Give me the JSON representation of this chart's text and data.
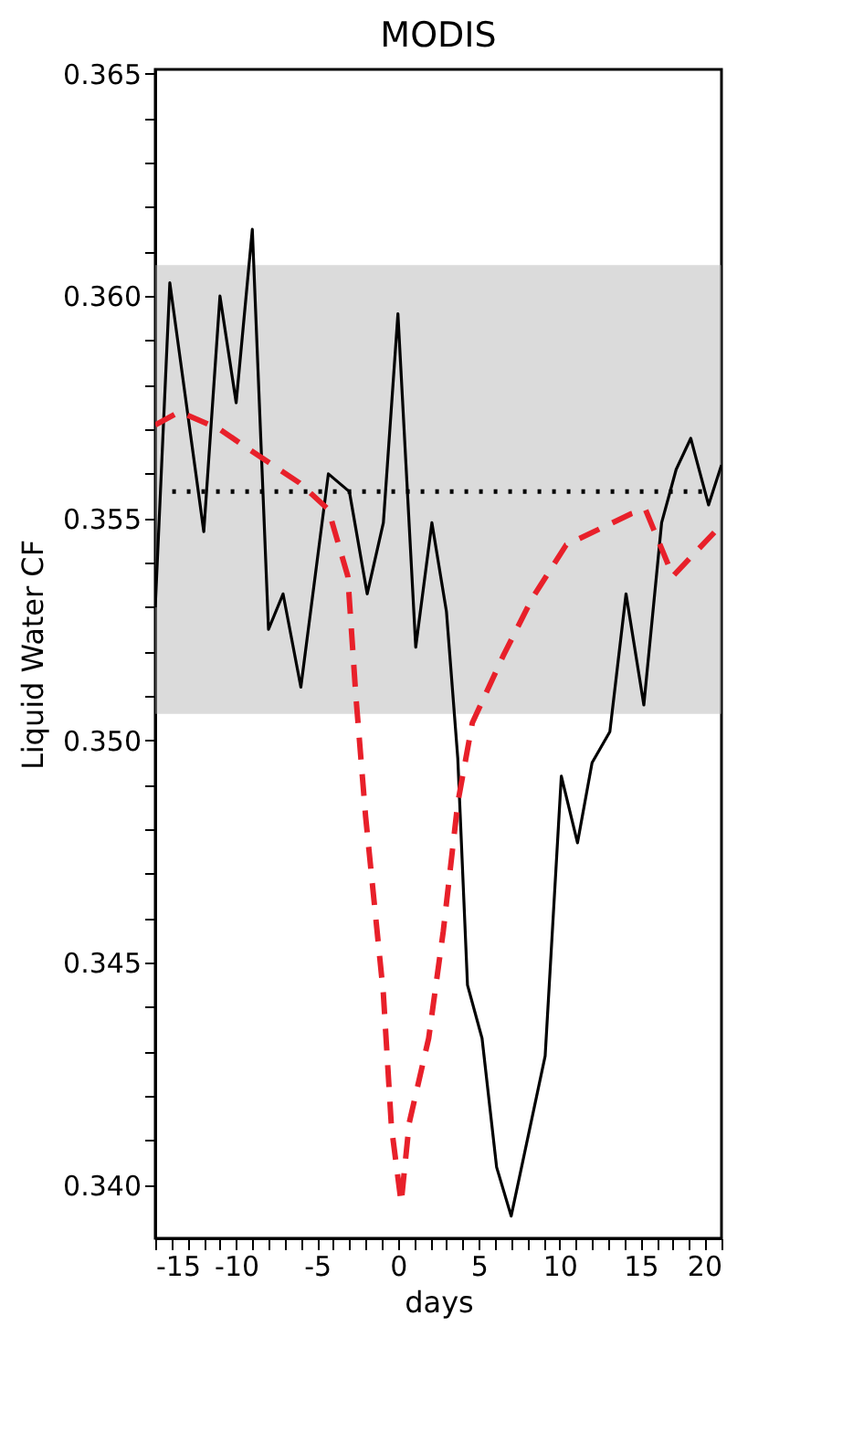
{
  "chart_data": {
    "type": "line",
    "title": "MODIS",
    "xlabel": "days",
    "ylabel": "Liquid Water CF",
    "xlim": [
      -15,
      20
    ],
    "ylim": [
      0.3388,
      0.3651
    ],
    "xticks": [
      -15,
      {
        "value": -14,
        "label": null
      },
      {
        "value": -13,
        "label": null
      },
      {
        "value": -12,
        "label": null
      },
      {
        "value": -11,
        "label": null
      },
      -10,
      {
        "value": -9,
        "label": null
      },
      {
        "value": -8,
        "label": null
      },
      {
        "value": -7,
        "label": null
      },
      {
        "value": -6,
        "label": null
      },
      -5,
      {
        "value": -4,
        "label": null
      },
      {
        "value": -3,
        "label": null
      },
      {
        "value": -2,
        "label": null
      },
      {
        "value": -1,
        "label": null
      },
      0,
      {
        "value": 1,
        "label": null
      },
      {
        "value": 2,
        "label": null
      },
      {
        "value": 3,
        "label": null
      },
      {
        "value": 4,
        "label": null
      },
      5,
      {
        "value": 6,
        "label": null
      },
      {
        "value": 7,
        "label": null
      },
      {
        "value": 8,
        "label": null
      },
      {
        "value": 9,
        "label": null
      },
      10,
      {
        "value": 11,
        "label": null
      },
      {
        "value": 12,
        "label": null
      },
      {
        "value": 13,
        "label": null
      },
      {
        "value": 14,
        "label": null
      },
      15,
      {
        "value": 16,
        "label": null
      },
      {
        "value": 17,
        "label": null
      },
      {
        "value": 18,
        "label": null
      },
      {
        "value": 19,
        "label": null
      },
      20
    ],
    "yticks": [
      {
        "value": 0.34,
        "label": "0.340"
      },
      {
        "value": 0.341,
        "label": null
      },
      {
        "value": 0.342,
        "label": null
      },
      {
        "value": 0.343,
        "label": null
      },
      {
        "value": 0.344,
        "label": null
      },
      0.345,
      {
        "value": 0.346,
        "label": null
      },
      {
        "value": 0.347,
        "label": null
      },
      {
        "value": 0.348,
        "label": null
      },
      {
        "value": 0.349,
        "label": null
      },
      {
        "value": 0.35,
        "label": "0.350"
      },
      {
        "value": 0.351,
        "label": null
      },
      {
        "value": 0.352,
        "label": null
      },
      {
        "value": 0.353,
        "label": null
      },
      {
        "value": 0.354,
        "label": null
      },
      0.355,
      {
        "value": 0.356,
        "label": null
      },
      {
        "value": 0.357,
        "label": null
      },
      {
        "value": 0.358,
        "label": null
      },
      {
        "value": 0.359,
        "label": null
      },
      {
        "value": 0.36,
        "label": "0.360"
      },
      {
        "value": 0.361,
        "label": null
      },
      {
        "value": 0.362,
        "label": null
      },
      {
        "value": 0.363,
        "label": null
      },
      {
        "value": 0.364,
        "label": null
      },
      0.365
    ],
    "grid": false,
    "series": [
      {
        "color": "#000000",
        "line_style": "solid",
        "x": [
          -15,
          -14.1,
          -12,
          -11,
          -10,
          -9,
          -8,
          -7.1,
          -6,
          -4.3,
          -3,
          -1.9,
          -0.9,
          0,
          1.1,
          2.1,
          3,
          3.7,
          4.3,
          5.2,
          6.1,
          7,
          9.1,
          10.1,
          11.1,
          12,
          13.1,
          14.1,
          15.2,
          16.3,
          17.2,
          18.1,
          19.2,
          20
        ],
        "values": [
          0.353,
          0.3603,
          0.3547,
          0.36,
          0.3576,
          0.3615,
          0.3525,
          0.3533,
          0.3512,
          0.356,
          0.3556,
          0.3533,
          0.3549,
          0.3596,
          0.3521,
          0.3549,
          0.3529,
          0.3496,
          0.3445,
          0.3433,
          0.3404,
          0.3393,
          0.3429,
          0.3492,
          0.3477,
          0.3495,
          0.3502,
          0.3533,
          0.3508,
          0.3549,
          0.3561,
          0.3568,
          0.3553,
          0.3562
        ]
      },
      {
        "color": "#e8202a",
        "line_style": "dashed",
        "x": [
          -15,
          -13.5,
          -11,
          -9.4,
          -6.1,
          -4.3,
          -3.1,
          -2.6,
          -2,
          -0.9,
          -0.4,
          0.2,
          0.7,
          1.9,
          2.8,
          3.7,
          4.6,
          6.5,
          8.3,
          10.4,
          14.4,
          15.3,
          17,
          19.6
        ],
        "values": [
          0.3571,
          0.3574,
          0.357,
          0.3566,
          0.3558,
          0.3552,
          0.3537,
          0.351,
          0.3483,
          0.3443,
          0.3413,
          0.3396,
          0.3414,
          0.3433,
          0.3457,
          0.3486,
          0.3504,
          0.3519,
          0.3532,
          0.3544,
          0.3551,
          0.3552,
          0.3537,
          0.3547
        ]
      }
    ],
    "ref_lines": [
      {
        "axis": "y",
        "value": 0.3556,
        "color": "#000000",
        "line_style": "dotted"
      }
    ],
    "bands": [
      {
        "axis": "y",
        "from": 0.3506,
        "to": 0.3607,
        "color": "#b0b0b0"
      }
    ]
  }
}
